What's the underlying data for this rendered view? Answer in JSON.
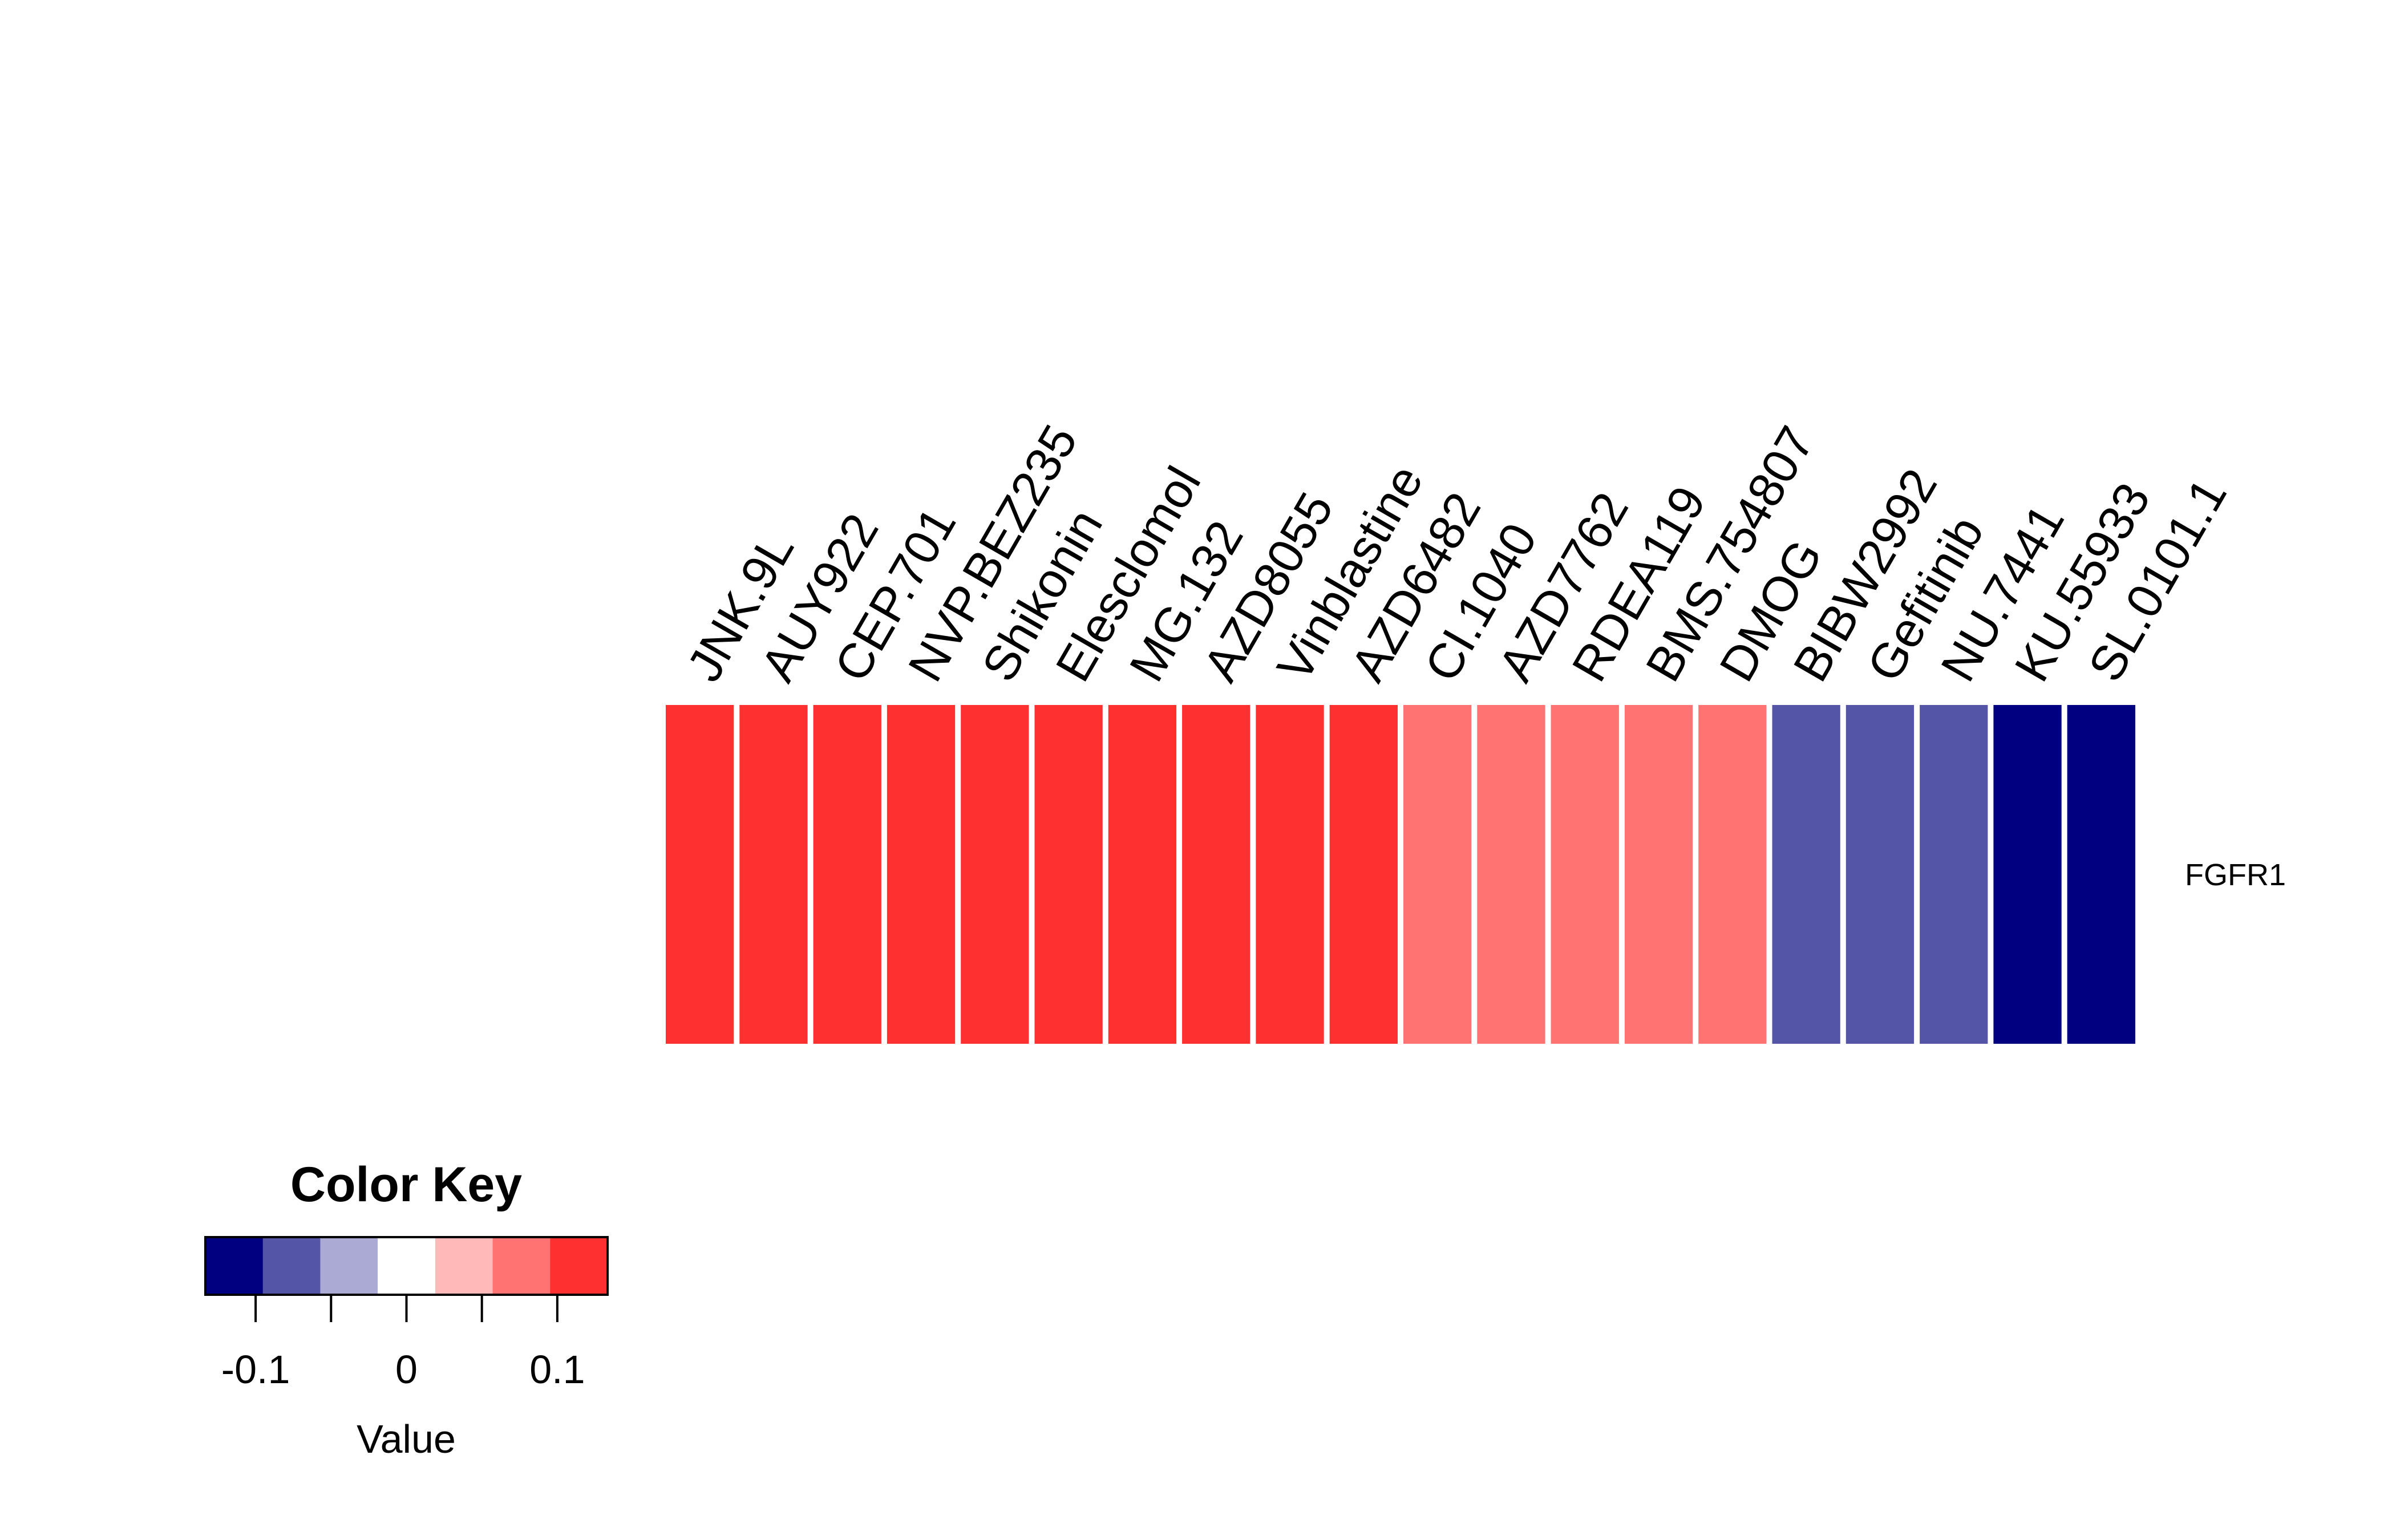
{
  "chart_data": {
    "type": "heatmap",
    "rows": [
      "FGFR1"
    ],
    "columns": [
      "JNK.9L",
      "AUY922",
      "CEP.701",
      "NVP.BEZ235",
      "Shikonin",
      "Elesclomol",
      "MG.132",
      "AZD8055",
      "Vinblastine",
      "AZD6482",
      "CI.1040",
      "AZD7762",
      "RDEA119",
      "BMS.754807",
      "DMOG",
      "BIBW2992",
      "Gefitinib",
      "NU.7441",
      "KU.55933",
      "SL.0101.1"
    ],
    "values": [
      [
        0.12,
        0.12,
        0.12,
        0.12,
        0.12,
        0.12,
        0.12,
        0.12,
        0.12,
        0.12,
        0.08,
        0.08,
        0.08,
        0.08,
        0.08,
        -0.08,
        -0.08,
        -0.08,
        -0.12,
        -0.12
      ]
    ],
    "color_key": {
      "title": "Color Key",
      "xlabel": "Value",
      "range": [
        -0.1333,
        0.1333
      ],
      "bin_colors": [
        "#000080",
        "#5555A8",
        "#AAAAD4",
        "#FFFFFF",
        "#FFB9B9",
        "#FF7373",
        "#FF3030"
      ],
      "ticks": [
        -0.1,
        -0.05,
        0,
        0.05,
        0.1
      ],
      "tick_labels": [
        "-0.1",
        "",
        "0",
        "",
        "0.1"
      ]
    }
  }
}
